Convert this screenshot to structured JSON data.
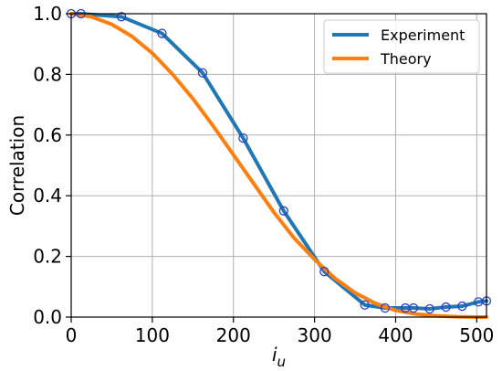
{
  "chart_data": {
    "type": "line",
    "xlabel": "i",
    "xlabel_sub": "u",
    "ylabel": "Correlation",
    "xlim": [
      0,
      512
    ],
    "ylim": [
      0.0,
      1.0
    ],
    "xticks": [
      0,
      100,
      200,
      300,
      400,
      500
    ],
    "yticks": [
      0.0,
      0.2,
      0.4,
      0.6,
      0.8,
      1.0
    ],
    "xtick_labels": [
      "0",
      "100",
      "200",
      "300",
      "400",
      "500"
    ],
    "ytick_labels": [
      "0.0",
      "0.2",
      "0.4",
      "0.6",
      "0.8",
      "1.0"
    ],
    "grid": true,
    "legend_position": "top-right",
    "series": [
      {
        "name": "Experiment",
        "color": "#1f77b4",
        "marker": "circle-open",
        "marker_color": "#2b3fc8",
        "x": [
          0,
          12,
          62,
          112,
          162,
          212,
          262,
          312,
          362,
          387,
          412,
          422,
          442,
          462,
          482,
          502,
          512
        ],
        "y": [
          1.0,
          1.0,
          0.99,
          0.935,
          0.805,
          0.59,
          0.35,
          0.15,
          0.04,
          0.03,
          0.03,
          0.03,
          0.027,
          0.033,
          0.036,
          0.05,
          0.053
        ]
      },
      {
        "name": "Theory",
        "color": "#ff7f0e",
        "x": [
          0,
          25,
          50,
          75,
          100,
          125,
          150,
          175,
          200,
          225,
          250,
          275,
          300,
          325,
          350,
          375,
          400,
          425,
          450,
          475,
          500,
          512
        ],
        "y": [
          1.0,
          0.99,
          0.965,
          0.925,
          0.87,
          0.8,
          0.72,
          0.63,
          0.535,
          0.44,
          0.345,
          0.26,
          0.19,
          0.128,
          0.08,
          0.045,
          0.022,
          0.01,
          0.004,
          0.001,
          0.0,
          0.0
        ]
      }
    ]
  }
}
